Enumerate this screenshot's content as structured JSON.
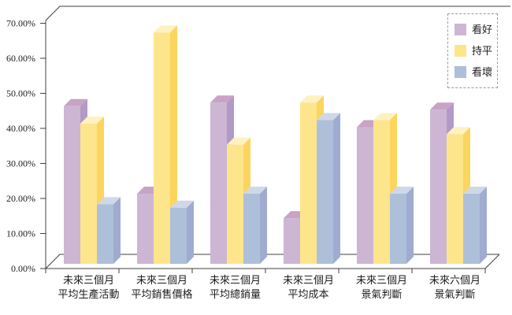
{
  "chart_data": {
    "type": "bar",
    "style": "clustered-3d-effect",
    "title": "",
    "categories": [
      "未來三個月 平均生產活動",
      "未來三個月 平均銷售價格",
      "未來三個月 平均總銷量",
      "未來三個月 平均成本",
      "未來三個月 景氣判斷",
      "未來六個月 景氣判斷"
    ],
    "categories_two_line": [
      [
        "未來三個月",
        "平均生產活動"
      ],
      [
        "未來三個月",
        "平均銷售價格"
      ],
      [
        "未來三個月",
        "平均總銷量"
      ],
      [
        "未來三個月",
        "平均成本"
      ],
      [
        "未來三個月",
        "景氣判斷"
      ],
      [
        "未來六個月",
        "景氣判斷"
      ]
    ],
    "series": [
      {
        "name": "看好",
        "values": [
          45,
          20,
          46,
          13,
          39,
          44
        ],
        "color_front": "#ccb6d4",
        "color_top": "#c8a3c5",
        "color_side": "#b29ac6"
      },
      {
        "name": "持平",
        "values": [
          40,
          66,
          34,
          46,
          41,
          37
        ],
        "color_front": "#fde58c",
        "color_top": "#fdf2c0",
        "color_side": "#fcd55e"
      },
      {
        "name": "看壞",
        "values": [
          17,
          16,
          20,
          41,
          20,
          20
        ],
        "color_front": "#aebfd9",
        "color_top": "#cfd8e7",
        "color_side": "#9fabd0"
      }
    ],
    "values_unit": "%",
    "y_axis": {
      "min": 0,
      "max": 70,
      "step": 10,
      "tick_labels": [
        "0.00%",
        "10.00%",
        "20.00%",
        "30.00%",
        "40.00%",
        "50.00%",
        "60.00%",
        "70.00%"
      ]
    },
    "legend": {
      "position": "top-right",
      "items": [
        "看好",
        "持平",
        "看壞"
      ]
    },
    "grid": false
  },
  "colors": {
    "axis": "#3f3f3f",
    "text": "#1c1c1c",
    "legend_border": "#9a9a9a",
    "background": "#ffffff"
  }
}
